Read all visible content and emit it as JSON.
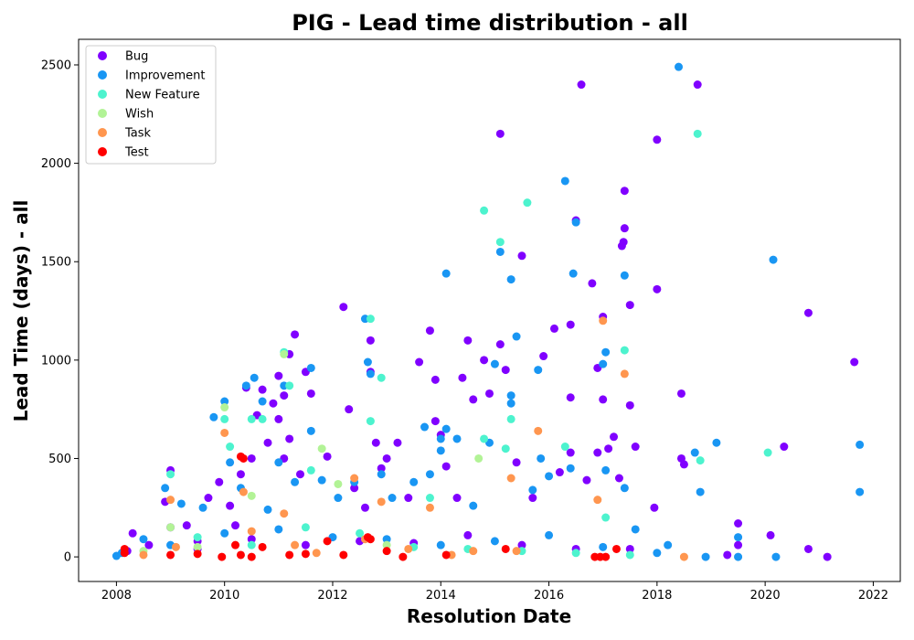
{
  "chart_data": {
    "type": "scatter",
    "title": "PIG - Lead time distribution - all",
    "xlabel": "Resolution Date",
    "ylabel": "Lead Time (days) - all",
    "xlim": [
      2007.3,
      2022.5
    ],
    "ylim": [
      -125,
      2630
    ],
    "xticks": [
      "2008",
      "2010",
      "2012",
      "2014",
      "2016",
      "2018",
      "2020",
      "2022"
    ],
    "yticks": [
      "0",
      "500",
      "1000",
      "1500",
      "2000",
      "2500"
    ],
    "grid": false,
    "legend_position": "top-left",
    "series": [
      {
        "name": "Bug",
        "color": "#8000ff",
        "points": [
          [
            2008.3,
            120
          ],
          [
            2008.6,
            60
          ],
          [
            2008.9,
            280
          ],
          [
            2009.0,
            440
          ],
          [
            2009.0,
            150
          ],
          [
            2009.3,
            160
          ],
          [
            2009.5,
            80
          ],
          [
            2009.7,
            300
          ],
          [
            2009.9,
            380
          ],
          [
            2010.1,
            260
          ],
          [
            2010.2,
            160
          ],
          [
            2010.3,
            420
          ],
          [
            2010.4,
            860
          ],
          [
            2010.5,
            500
          ],
          [
            2010.6,
            720
          ],
          [
            2010.7,
            850
          ],
          [
            2010.8,
            580
          ],
          [
            2010.9,
            780
          ],
          [
            2011.0,
            920
          ],
          [
            2011.0,
            700
          ],
          [
            2011.1,
            820
          ],
          [
            2011.1,
            500
          ],
          [
            2011.2,
            1030
          ],
          [
            2011.2,
            600
          ],
          [
            2011.3,
            1130
          ],
          [
            2011.4,
            420
          ],
          [
            2011.5,
            940
          ],
          [
            2011.6,
            830
          ],
          [
            2011.9,
            510
          ],
          [
            2012.2,
            1270
          ],
          [
            2012.3,
            750
          ],
          [
            2012.4,
            350
          ],
          [
            2012.6,
            250
          ],
          [
            2012.7,
            1100
          ],
          [
            2012.7,
            940
          ],
          [
            2012.8,
            580
          ],
          [
            2012.9,
            450
          ],
          [
            2013.0,
            500
          ],
          [
            2013.2,
            580
          ],
          [
            2013.4,
            300
          ],
          [
            2013.6,
            990
          ],
          [
            2013.8,
            1150
          ],
          [
            2013.9,
            900
          ],
          [
            2013.9,
            690
          ],
          [
            2014.0,
            620
          ],
          [
            2014.1,
            460
          ],
          [
            2014.3,
            300
          ],
          [
            2014.4,
            910
          ],
          [
            2014.5,
            1100
          ],
          [
            2014.6,
            800
          ],
          [
            2014.8,
            1000
          ],
          [
            2014.9,
            830
          ],
          [
            2015.1,
            2150
          ],
          [
            2015.1,
            1080
          ],
          [
            2015.2,
            950
          ],
          [
            2015.4,
            480
          ],
          [
            2015.5,
            1530
          ],
          [
            2015.7,
            300
          ],
          [
            2015.9,
            1020
          ],
          [
            2016.1,
            1160
          ],
          [
            2016.2,
            430
          ],
          [
            2016.4,
            810
          ],
          [
            2016.4,
            1180
          ],
          [
            2016.4,
            530
          ],
          [
            2016.5,
            1710
          ],
          [
            2016.6,
            2400
          ],
          [
            2016.7,
            390
          ],
          [
            2016.8,
            1390
          ],
          [
            2016.9,
            530
          ],
          [
            2016.9,
            960
          ],
          [
            2017.0,
            1220
          ],
          [
            2017.0,
            800
          ],
          [
            2017.1,
            550
          ],
          [
            2017.2,
            610
          ],
          [
            2017.3,
            400
          ],
          [
            2017.35,
            1580
          ],
          [
            2017.38,
            1600
          ],
          [
            2017.4,
            1670
          ],
          [
            2017.4,
            1860
          ],
          [
            2017.5,
            770
          ],
          [
            2017.5,
            1280
          ],
          [
            2017.6,
            560
          ],
          [
            2018.0,
            2120
          ],
          [
            2018.0,
            1360
          ],
          [
            2017.95,
            250
          ],
          [
            2018.45,
            830
          ],
          [
            2018.45,
            500
          ],
          [
            2018.5,
            470
          ],
          [
            2018.75,
            2400
          ],
          [
            2019.5,
            170
          ],
          [
            2020.1,
            110
          ],
          [
            2020.35,
            560
          ],
          [
            2020.8,
            1240
          ],
          [
            2020.8,
            40
          ],
          [
            2021.15,
            0
          ],
          [
            2021.65,
            990
          ],
          [
            2019.3,
            10
          ],
          [
            2019.5,
            60
          ],
          [
            2008.2,
            30
          ],
          [
            2009.5,
            40
          ],
          [
            2010.5,
            90
          ],
          [
            2011.5,
            60
          ],
          [
            2012.5,
            80
          ],
          [
            2013.5,
            70
          ],
          [
            2014.5,
            110
          ],
          [
            2015.5,
            60
          ],
          [
            2016.5,
            40
          ],
          [
            2017.5,
            40
          ]
        ]
      },
      {
        "name": "Improvement",
        "color": "#1996f3",
        "points": [
          [
            2008.1,
            20
          ],
          [
            2008.5,
            90
          ],
          [
            2008.9,
            350
          ],
          [
            2009.2,
            270
          ],
          [
            2009.6,
            250
          ],
          [
            2009.8,
            710
          ],
          [
            2010.0,
            790
          ],
          [
            2010.1,
            480
          ],
          [
            2010.3,
            350
          ],
          [
            2010.4,
            870
          ],
          [
            2010.55,
            910
          ],
          [
            2010.7,
            790
          ],
          [
            2010.8,
            240
          ],
          [
            2011.0,
            480
          ],
          [
            2011.1,
            870
          ],
          [
            2011.3,
            380
          ],
          [
            2011.6,
            960
          ],
          [
            2011.6,
            640
          ],
          [
            2011.8,
            390
          ],
          [
            2012.1,
            300
          ],
          [
            2012.4,
            380
          ],
          [
            2012.6,
            1210
          ],
          [
            2012.65,
            990
          ],
          [
            2012.7,
            930
          ],
          [
            2012.9,
            420
          ],
          [
            2013.1,
            300
          ],
          [
            2013.5,
            380
          ],
          [
            2013.7,
            660
          ],
          [
            2013.8,
            420
          ],
          [
            2014.0,
            600
          ],
          [
            2014.0,
            540
          ],
          [
            2014.1,
            1440
          ],
          [
            2014.1,
            650
          ],
          [
            2014.3,
            600
          ],
          [
            2014.6,
            260
          ],
          [
            2014.9,
            580
          ],
          [
            2015.0,
            980
          ],
          [
            2015.1,
            1550
          ],
          [
            2015.3,
            1410
          ],
          [
            2015.3,
            820
          ],
          [
            2015.3,
            780
          ],
          [
            2015.4,
            1120
          ],
          [
            2015.7,
            340
          ],
          [
            2015.8,
            950
          ],
          [
            2015.85,
            500
          ],
          [
            2016.0,
            410
          ],
          [
            2016.3,
            1910
          ],
          [
            2016.4,
            450
          ],
          [
            2016.45,
            1440
          ],
          [
            2016.5,
            1700
          ],
          [
            2017.0,
            980
          ],
          [
            2017.05,
            1040
          ],
          [
            2017.05,
            440
          ],
          [
            2017.4,
            1430
          ],
          [
            2017.4,
            350
          ],
          [
            2017.6,
            140
          ],
          [
            2018.4,
            2490
          ],
          [
            2018.7,
            530
          ],
          [
            2018.8,
            330
          ],
          [
            2019.1,
            580
          ],
          [
            2019.5,
            100
          ],
          [
            2020.15,
            1510
          ],
          [
            2020.2,
            0
          ],
          [
            2021.75,
            570
          ],
          [
            2021.75,
            330
          ],
          [
            2018.2,
            60
          ],
          [
            2018.9,
            0
          ],
          [
            2019.5,
            0
          ],
          [
            2008.0,
            5
          ],
          [
            2009.0,
            60
          ],
          [
            2010.0,
            120
          ],
          [
            2011.0,
            140
          ],
          [
            2012.0,
            100
          ],
          [
            2013.0,
            90
          ],
          [
            2014.0,
            60
          ],
          [
            2015.0,
            80
          ],
          [
            2016.0,
            110
          ],
          [
            2017.0,
            50
          ],
          [
            2018.0,
            20
          ]
        ]
      },
      {
        "name": "New Feature",
        "color": "#4df3ce",
        "points": [
          [
            2009.0,
            420
          ],
          [
            2010.0,
            700
          ],
          [
            2010.1,
            560
          ],
          [
            2010.5,
            700
          ],
          [
            2010.7,
            700
          ],
          [
            2011.1,
            1040
          ],
          [
            2011.2,
            870
          ],
          [
            2011.6,
            440
          ],
          [
            2012.7,
            1210
          ],
          [
            2012.7,
            690
          ],
          [
            2012.9,
            910
          ],
          [
            2013.8,
            300
          ],
          [
            2014.8,
            1760
          ],
          [
            2014.8,
            600
          ],
          [
            2015.1,
            1600
          ],
          [
            2015.2,
            550
          ],
          [
            2015.3,
            700
          ],
          [
            2015.6,
            1800
          ],
          [
            2016.3,
            560
          ],
          [
            2017.05,
            200
          ],
          [
            2017.4,
            1050
          ],
          [
            2018.75,
            2150
          ],
          [
            2018.8,
            490
          ],
          [
            2020.05,
            530
          ],
          [
            2009.5,
            100
          ],
          [
            2010.5,
            60
          ],
          [
            2011.5,
            150
          ],
          [
            2012.5,
            120
          ],
          [
            2013.5,
            50
          ],
          [
            2014.5,
            40
          ],
          [
            2015.5,
            30
          ],
          [
            2016.5,
            20
          ],
          [
            2017.5,
            10
          ]
        ]
      },
      {
        "name": "Wish",
        "color": "#b2f396",
        "points": [
          [
            2009.0,
            150
          ],
          [
            2010.0,
            760
          ],
          [
            2010.5,
            310
          ],
          [
            2011.1,
            1030
          ],
          [
            2011.8,
            550
          ],
          [
            2012.1,
            370
          ],
          [
            2014.7,
            500
          ],
          [
            2008.5,
            30
          ],
          [
            2009.5,
            50
          ],
          [
            2013.0,
            60
          ]
        ]
      },
      {
        "name": "Task",
        "color": "#ff964f",
        "points": [
          [
            2009.0,
            290
          ],
          [
            2009.1,
            50
          ],
          [
            2010.0,
            630
          ],
          [
            2010.35,
            330
          ],
          [
            2010.5,
            130
          ],
          [
            2011.1,
            220
          ],
          [
            2011.3,
            60
          ],
          [
            2012.4,
            400
          ],
          [
            2012.6,
            90
          ],
          [
            2012.9,
            280
          ],
          [
            2013.4,
            40
          ],
          [
            2013.8,
            250
          ],
          [
            2014.2,
            10
          ],
          [
            2015.3,
            400
          ],
          [
            2015.4,
            30
          ],
          [
            2015.8,
            640
          ],
          [
            2016.9,
            290
          ],
          [
            2017.0,
            1200
          ],
          [
            2017.4,
            930
          ],
          [
            2018.5,
            0
          ],
          [
            2008.5,
            10
          ],
          [
            2011.7,
            20
          ],
          [
            2014.6,
            30
          ]
        ]
      },
      {
        "name": "Test",
        "color": "#ff0000",
        "points": [
          [
            2008.15,
            20
          ],
          [
            2008.15,
            40
          ],
          [
            2009.0,
            10
          ],
          [
            2009.5,
            15
          ],
          [
            2009.95,
            0
          ],
          [
            2010.2,
            60
          ],
          [
            2010.3,
            510
          ],
          [
            2010.35,
            500
          ],
          [
            2010.3,
            10
          ],
          [
            2010.5,
            0
          ],
          [
            2010.7,
            50
          ],
          [
            2011.2,
            10
          ],
          [
            2011.5,
            15
          ],
          [
            2011.9,
            80
          ],
          [
            2012.2,
            10
          ],
          [
            2012.65,
            100
          ],
          [
            2012.7,
            90
          ],
          [
            2013.0,
            30
          ],
          [
            2013.3,
            0
          ],
          [
            2014.1,
            10
          ],
          [
            2015.2,
            40
          ],
          [
            2016.85,
            0
          ],
          [
            2016.95,
            0
          ],
          [
            2017.05,
            0
          ],
          [
            2017.25,
            40
          ]
        ]
      }
    ]
  }
}
